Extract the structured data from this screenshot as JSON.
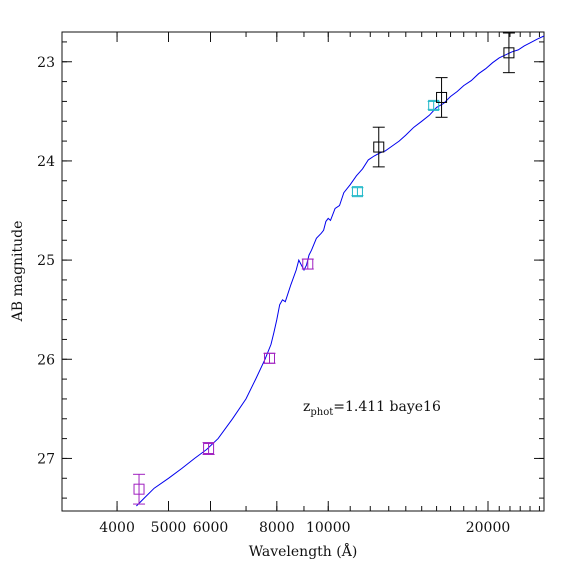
{
  "chart_data": {
    "type": "scatter",
    "title": "",
    "xlabel": "Wavelength (Å)",
    "ylabel": "AB magnitude",
    "x_scale": "log",
    "y_inverted": true,
    "xlim": [
      3150,
      25500
    ],
    "ylim": [
      27.53,
      22.7
    ],
    "xticks": [
      4000,
      5000,
      6000,
      8000,
      10000,
      20000
    ],
    "xtick_labels": [
      "4000",
      "5000",
      "6000",
      "8000",
      "10000",
      "20000"
    ],
    "yticks": [
      23,
      24,
      25,
      26,
      27
    ],
    "ytick_labels": [
      "23",
      "24",
      "25",
      "26",
      "27"
    ],
    "annotation": {
      "prefix": "z",
      "subscript": "phot",
      "suffix": "=1.411 baye16",
      "color": "#0000ee"
    },
    "grid": false,
    "legend": "none",
    "colors": {
      "model": "#0000ee",
      "optical": "#a020c0",
      "medium": "#20b8c8",
      "nir": "#000000"
    },
    "series": [
      {
        "color_key": "optical",
        "points": [
          {
            "x": 4400,
            "y": 27.31,
            "err": 0.15
          },
          {
            "x": 5950,
            "y": 26.9,
            "err": 0.06
          },
          {
            "x": 7750,
            "y": 25.99,
            "err": 0.05
          },
          {
            "x": 9150,
            "y": 25.04,
            "err": 0.05
          }
        ]
      },
      {
        "color_key": "medium",
        "points": [
          {
            "x": 11350,
            "y": 24.31,
            "err": 0.04
          },
          {
            "x": 15800,
            "y": 23.44,
            "err": 0.04
          }
        ]
      },
      {
        "color_key": "nir",
        "points": [
          {
            "x": 12450,
            "y": 23.86,
            "err": 0.2
          },
          {
            "x": 16350,
            "y": 23.36,
            "err": 0.2
          },
          {
            "x": 21900,
            "y": 22.91,
            "err": 0.2
          }
        ]
      }
    ],
    "model_curve": {
      "color_key": "model",
      "x": [
        4350,
        4500,
        4700,
        5000,
        5300,
        5600,
        5900,
        6200,
        6600,
        7000,
        7300,
        7600,
        7800,
        7900,
        8000,
        8100,
        8200,
        8300,
        8500,
        8700,
        8800,
        8900,
        9000,
        9100,
        9200,
        9300,
        9500,
        9700,
        9800,
        9900,
        10000,
        10100,
        10300,
        10500,
        10700,
        11000,
        11300,
        11600,
        11900,
        12200,
        12500,
        12800,
        13200,
        13600,
        14000,
        14500,
        15000,
        15500,
        16000,
        16500,
        17000,
        17500,
        18000,
        18600,
        19200,
        19800,
        20400,
        21000,
        21600,
        22200,
        22800,
        23400,
        24000,
        24800,
        25500
      ],
      "y": [
        27.48,
        27.4,
        27.3,
        27.2,
        27.1,
        27.0,
        26.91,
        26.8,
        26.6,
        26.4,
        26.2,
        26.0,
        25.85,
        25.73,
        25.6,
        25.45,
        25.4,
        25.42,
        25.25,
        25.1,
        25.0,
        25.05,
        25.1,
        25.05,
        24.95,
        24.9,
        24.78,
        24.73,
        24.7,
        24.61,
        24.58,
        24.6,
        24.48,
        24.45,
        24.32,
        24.24,
        24.15,
        24.08,
        23.99,
        23.95,
        23.92,
        23.9,
        23.85,
        23.8,
        23.74,
        23.66,
        23.6,
        23.54,
        23.46,
        23.42,
        23.35,
        23.3,
        23.24,
        23.19,
        23.12,
        23.07,
        23.01,
        22.96,
        22.93,
        22.9,
        22.88,
        22.84,
        22.81,
        22.77,
        22.74
      ]
    }
  }
}
